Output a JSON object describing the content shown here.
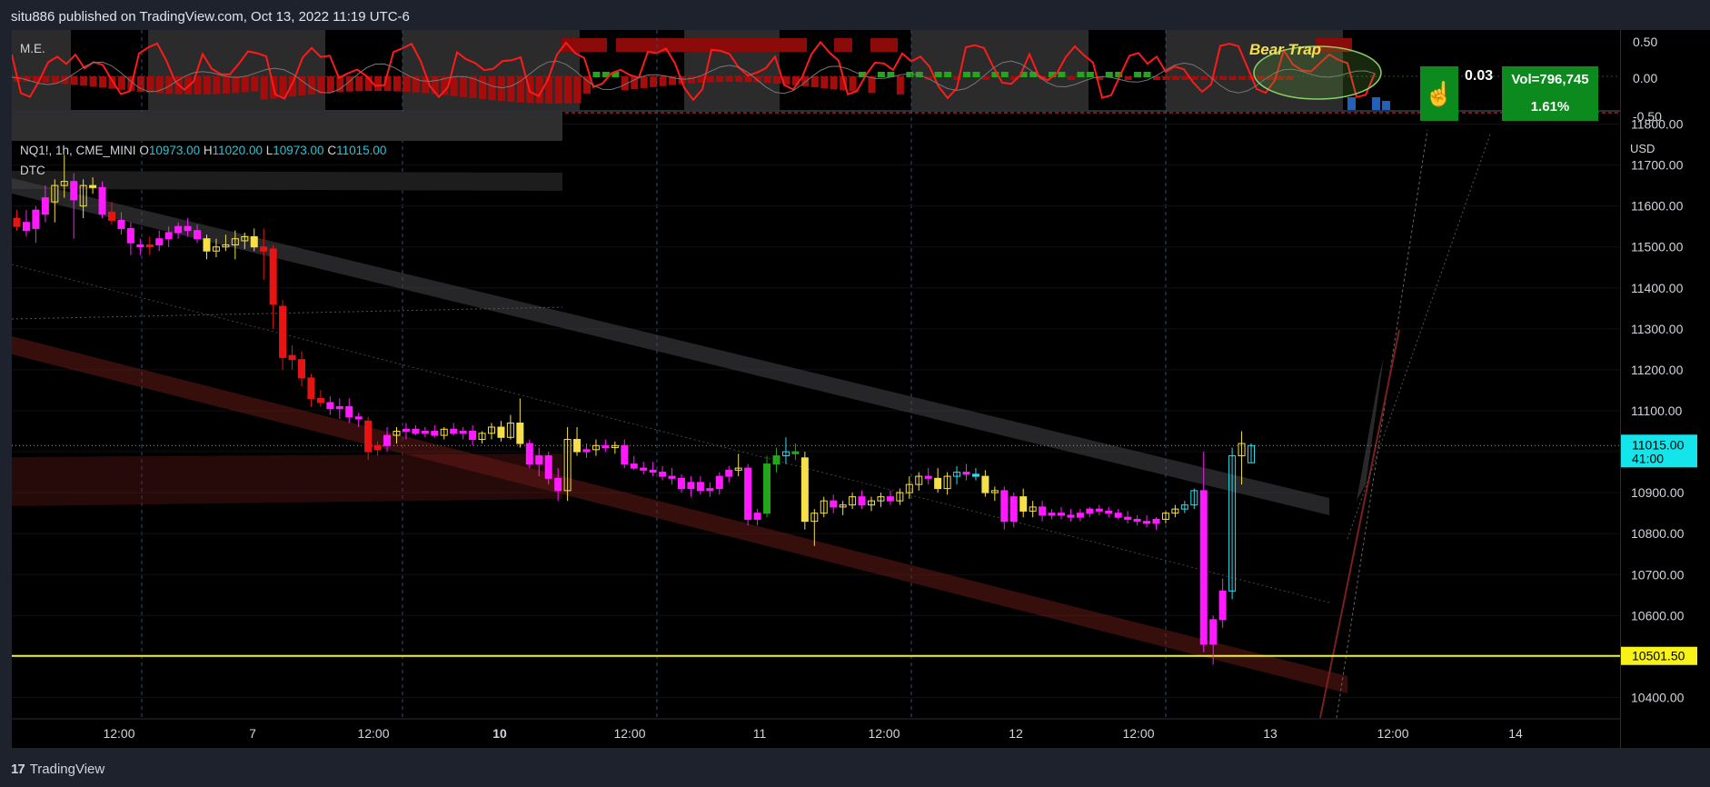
{
  "header": {
    "published": "situ886 published on TradingView.com, Oct 13, 2022 11:19 UTC-6"
  },
  "indicator": {
    "name": "M.E.",
    "annotation": "Bear Trap",
    "value": "0.03",
    "vol_label": "Vol=796,745",
    "vol_pct": "1.61%",
    "scale": [
      "0.50",
      "0.00",
      "-0.50"
    ]
  },
  "legend": {
    "symbol": "NQ1!, 1h, CME_MINI",
    "o_label": "O",
    "o_value": "10973.00",
    "h_label": "H",
    "h_value": "11020.00",
    "l_label": "L",
    "l_value": "10973.00",
    "c_label": "C",
    "c_value": "11015.00",
    "study": "DTC"
  },
  "price_scale": {
    "currency": "USD",
    "ticks": [
      "11800.00",
      "11700.00",
      "11600.00",
      "11500.00",
      "11400.00",
      "11300.00",
      "11200.00",
      "11100.00",
      "11000.00",
      "10900.00",
      "10800.00",
      "10700.00",
      "10600.00",
      "10500.00",
      "10400.00"
    ],
    "current_price": "11015.00",
    "countdown": "41:00",
    "level_price": "10501.50"
  },
  "time_scale": {
    "ticks": [
      {
        "label": "12:00",
        "bold": false
      },
      {
        "label": "7",
        "bold": false
      },
      {
        "label": "12:00",
        "bold": false
      },
      {
        "label": "10",
        "bold": true
      },
      {
        "label": "12:00",
        "bold": false
      },
      {
        "label": "11",
        "bold": false
      },
      {
        "label": "12:00",
        "bold": false
      },
      {
        "label": "12",
        "bold": false
      },
      {
        "label": "12:00",
        "bold": false
      },
      {
        "label": "13",
        "bold": false
      },
      {
        "label": "12:00",
        "bold": false
      },
      {
        "label": "14",
        "bold": false
      }
    ]
  },
  "footer": {
    "brand": "TradingView"
  },
  "colors": {
    "background": "#000000",
    "bull_yellow": "#f5e04b",
    "bear_red": "#e81414",
    "bear_magenta": "#ff1aff",
    "cyan": "#26e0f0",
    "level_yellow": "#f7f31a",
    "indicator_red": "#ff1a1a",
    "indicator_green": "#22a61a"
  },
  "chart_data": {
    "type": "candlestick",
    "symbol": "NQ1!",
    "interval": "1h",
    "ylim": [
      10350,
      11830
    ],
    "horizontal_level": 10501.5,
    "last_price": 11015,
    "candles": [
      {
        "o": 11570,
        "h": 11590,
        "l": 11540,
        "c": 11550,
        "color": "red"
      },
      {
        "o": 11540,
        "h": 11590,
        "l": 11525,
        "c": 11560,
        "color": "magenta"
      },
      {
        "o": 11545,
        "h": 11600,
        "l": 11510,
        "c": 11590,
        "color": "magenta"
      },
      {
        "o": 11580,
        "h": 11650,
        "l": 11560,
        "c": 11620,
        "color": "magenta"
      },
      {
        "o": 11610,
        "h": 11665,
        "l": 11560,
        "c": 11650,
        "color": "yellow"
      },
      {
        "o": 11650,
        "h": 11725,
        "l": 11620,
        "c": 11660,
        "color": "yellow"
      },
      {
        "o": 11660,
        "h": 11680,
        "l": 11520,
        "c": 11615,
        "color": "magenta"
      },
      {
        "o": 11600,
        "h": 11665,
        "l": 11570,
        "c": 11650,
        "color": "yellow"
      },
      {
        "o": 11650,
        "h": 11670,
        "l": 11630,
        "c": 11645,
        "color": "yellow"
      },
      {
        "o": 11645,
        "h": 11660,
        "l": 11570,
        "c": 11580,
        "color": "magenta"
      },
      {
        "o": 11585,
        "h": 11610,
        "l": 11555,
        "c": 11565,
        "color": "red"
      },
      {
        "o": 11565,
        "h": 11585,
        "l": 11530,
        "c": 11545,
        "color": "magenta"
      },
      {
        "o": 11545,
        "h": 11560,
        "l": 11480,
        "c": 11510,
        "color": "magenta"
      },
      {
        "o": 11505,
        "h": 11520,
        "l": 11480,
        "c": 11500,
        "color": "magenta"
      },
      {
        "o": 11500,
        "h": 11525,
        "l": 11480,
        "c": 11505,
        "color": "red"
      },
      {
        "o": 11505,
        "h": 11540,
        "l": 11490,
        "c": 11520,
        "color": "magenta"
      },
      {
        "o": 11520,
        "h": 11550,
        "l": 11500,
        "c": 11535,
        "color": "magenta"
      },
      {
        "o": 11535,
        "h": 11560,
        "l": 11520,
        "c": 11550,
        "color": "magenta"
      },
      {
        "o": 11550,
        "h": 11570,
        "l": 11525,
        "c": 11540,
        "color": "magenta"
      },
      {
        "o": 11540,
        "h": 11555,
        "l": 11510,
        "c": 11520,
        "color": "magenta"
      },
      {
        "o": 11520,
        "h": 11530,
        "l": 11470,
        "c": 11490,
        "color": "yellow"
      },
      {
        "o": 11490,
        "h": 11520,
        "l": 11475,
        "c": 11500,
        "color": "yellow"
      },
      {
        "o": 11500,
        "h": 11530,
        "l": 11490,
        "c": 11505,
        "color": "yellow"
      },
      {
        "o": 11505,
        "h": 11540,
        "l": 11470,
        "c": 11520,
        "color": "yellow"
      },
      {
        "o": 11515,
        "h": 11535,
        "l": 11495,
        "c": 11525,
        "color": "yellow"
      },
      {
        "o": 11525,
        "h": 11545,
        "l": 11490,
        "c": 11500,
        "color": "yellow"
      },
      {
        "o": 11500,
        "h": 11545,
        "l": 11420,
        "c": 11490,
        "color": "red"
      },
      {
        "o": 11495,
        "h": 11505,
        "l": 11300,
        "c": 11360,
        "color": "red"
      },
      {
        "o": 11355,
        "h": 11370,
        "l": 11200,
        "c": 11230,
        "color": "red"
      },
      {
        "o": 11235,
        "h": 11260,
        "l": 11200,
        "c": 11225,
        "color": "red"
      },
      {
        "o": 11225,
        "h": 11245,
        "l": 11160,
        "c": 11180,
        "color": "red"
      },
      {
        "o": 11180,
        "h": 11190,
        "l": 11110,
        "c": 11130,
        "color": "red"
      },
      {
        "o": 11130,
        "h": 11150,
        "l": 11110,
        "c": 11120,
        "color": "red"
      },
      {
        "o": 11120,
        "h": 11135,
        "l": 11090,
        "c": 11105,
        "color": "magenta"
      },
      {
        "o": 11105,
        "h": 11130,
        "l": 11080,
        "c": 11110,
        "color": "magenta"
      },
      {
        "o": 11110,
        "h": 11130,
        "l": 11070,
        "c": 11085,
        "color": "magenta"
      },
      {
        "o": 11085,
        "h": 11095,
        "l": 11060,
        "c": 11080,
        "color": "magenta"
      },
      {
        "o": 11075,
        "h": 11085,
        "l": 10980,
        "c": 11000,
        "color": "red"
      },
      {
        "o": 11005,
        "h": 11025,
        "l": 10990,
        "c": 11015,
        "color": "red"
      },
      {
        "o": 11015,
        "h": 11060,
        "l": 11000,
        "c": 11040,
        "color": "magenta"
      },
      {
        "o": 11040,
        "h": 11060,
        "l": 11020,
        "c": 11050,
        "color": "yellow"
      },
      {
        "o": 11050,
        "h": 11070,
        "l": 11030,
        "c": 11055,
        "color": "magenta"
      },
      {
        "o": 11055,
        "h": 11065,
        "l": 11040,
        "c": 11045,
        "color": "magenta"
      },
      {
        "o": 11045,
        "h": 11060,
        "l": 11035,
        "c": 11050,
        "color": "magenta"
      },
      {
        "o": 11050,
        "h": 11065,
        "l": 11035,
        "c": 11040,
        "color": "magenta"
      },
      {
        "o": 11040,
        "h": 11060,
        "l": 11030,
        "c": 11055,
        "color": "yellow"
      },
      {
        "o": 11055,
        "h": 11070,
        "l": 11040,
        "c": 11045,
        "color": "magenta"
      },
      {
        "o": 11045,
        "h": 11060,
        "l": 11030,
        "c": 11050,
        "color": "magenta"
      },
      {
        "o": 11050,
        "h": 11065,
        "l": 11015,
        "c": 11030,
        "color": "magenta"
      },
      {
        "o": 11030,
        "h": 11050,
        "l": 11020,
        "c": 11045,
        "color": "yellow"
      },
      {
        "o": 11045,
        "h": 11070,
        "l": 11030,
        "c": 11060,
        "color": "yellow"
      },
      {
        "o": 11060,
        "h": 11075,
        "l": 11025,
        "c": 11035,
        "color": "yellow"
      },
      {
        "o": 11035,
        "h": 11090,
        "l": 11030,
        "c": 11070,
        "color": "yellow"
      },
      {
        "o": 11070,
        "h": 11130,
        "l": 11010,
        "c": 11020,
        "color": "yellow"
      },
      {
        "o": 11020,
        "h": 11030,
        "l": 10960,
        "c": 10970,
        "color": "magenta"
      },
      {
        "o": 10970,
        "h": 11010,
        "l": 10940,
        "c": 10990,
        "color": "magenta"
      },
      {
        "o": 10990,
        "h": 11000,
        "l": 10920,
        "c": 10935,
        "color": "magenta"
      },
      {
        "o": 10935,
        "h": 10960,
        "l": 10880,
        "c": 10905,
        "color": "magenta"
      },
      {
        "o": 10905,
        "h": 11060,
        "l": 10880,
        "c": 11030,
        "color": "yellow"
      },
      {
        "o": 11030,
        "h": 11060,
        "l": 10990,
        "c": 11000,
        "color": "yellow"
      },
      {
        "o": 11000,
        "h": 11020,
        "l": 10985,
        "c": 11005,
        "color": "magenta"
      },
      {
        "o": 11005,
        "h": 11030,
        "l": 10990,
        "c": 11015,
        "color": "yellow"
      },
      {
        "o": 11015,
        "h": 11030,
        "l": 11000,
        "c": 11010,
        "color": "magenta"
      },
      {
        "o": 11010,
        "h": 11025,
        "l": 10995,
        "c": 11015,
        "color": "yellow"
      },
      {
        "o": 11015,
        "h": 11030,
        "l": 10960,
        "c": 10970,
        "color": "magenta"
      },
      {
        "o": 10970,
        "h": 10990,
        "l": 10955,
        "c": 10960,
        "color": "magenta"
      },
      {
        "o": 10960,
        "h": 10975,
        "l": 10945,
        "c": 10955,
        "color": "magenta"
      },
      {
        "o": 10955,
        "h": 10975,
        "l": 10940,
        "c": 10950,
        "color": "magenta"
      },
      {
        "o": 10950,
        "h": 10965,
        "l": 10930,
        "c": 10940,
        "color": "magenta"
      },
      {
        "o": 10940,
        "h": 10960,
        "l": 10920,
        "c": 10935,
        "color": "magenta"
      },
      {
        "o": 10935,
        "h": 10945,
        "l": 10900,
        "c": 10910,
        "color": "magenta"
      },
      {
        "o": 10910,
        "h": 10940,
        "l": 10890,
        "c": 10925,
        "color": "magenta"
      },
      {
        "o": 10925,
        "h": 10940,
        "l": 10895,
        "c": 10905,
        "color": "magenta"
      },
      {
        "o": 10905,
        "h": 10925,
        "l": 10890,
        "c": 10910,
        "color": "magenta"
      },
      {
        "o": 10910,
        "h": 10950,
        "l": 10895,
        "c": 10940,
        "color": "magenta"
      },
      {
        "o": 10940,
        "h": 10965,
        "l": 10925,
        "c": 10955,
        "color": "magenta"
      },
      {
        "o": 10955,
        "h": 10995,
        "l": 10940,
        "c": 10960,
        "color": "yellow"
      },
      {
        "o": 10960,
        "h": 10970,
        "l": 10820,
        "c": 10835,
        "color": "magenta"
      },
      {
        "o": 10835,
        "h": 10860,
        "l": 10820,
        "c": 10850,
        "color": "magenta"
      },
      {
        "o": 10850,
        "h": 10990,
        "l": 10840,
        "c": 10970,
        "color": "green"
      },
      {
        "o": 10970,
        "h": 11010,
        "l": 10950,
        "c": 10990,
        "color": "green"
      },
      {
        "o": 10990,
        "h": 11035,
        "l": 10970,
        "c": 11000,
        "color": "cyan"
      },
      {
        "o": 11000,
        "h": 11020,
        "l": 10980,
        "c": 10995,
        "color": "green"
      },
      {
        "o": 10985,
        "h": 11000,
        "l": 10810,
        "c": 10830,
        "color": "yellow"
      },
      {
        "o": 10830,
        "h": 10860,
        "l": 10770,
        "c": 10850,
        "color": "yellow"
      },
      {
        "o": 10850,
        "h": 10890,
        "l": 10840,
        "c": 10880,
        "color": "yellow"
      },
      {
        "o": 10880,
        "h": 10895,
        "l": 10850,
        "c": 10865,
        "color": "magenta"
      },
      {
        "o": 10865,
        "h": 10880,
        "l": 10845,
        "c": 10870,
        "color": "yellow"
      },
      {
        "o": 10870,
        "h": 10900,
        "l": 10860,
        "c": 10890,
        "color": "yellow"
      },
      {
        "o": 10890,
        "h": 10905,
        "l": 10860,
        "c": 10870,
        "color": "magenta"
      },
      {
        "o": 10870,
        "h": 10890,
        "l": 10855,
        "c": 10880,
        "color": "yellow"
      },
      {
        "o": 10880,
        "h": 10900,
        "l": 10865,
        "c": 10890,
        "color": "yellow"
      },
      {
        "o": 10890,
        "h": 10905,
        "l": 10870,
        "c": 10880,
        "color": "magenta"
      },
      {
        "o": 10880,
        "h": 10910,
        "l": 10870,
        "c": 10900,
        "color": "yellow"
      },
      {
        "o": 10900,
        "h": 10940,
        "l": 10885,
        "c": 10920,
        "color": "yellow"
      },
      {
        "o": 10920,
        "h": 10950,
        "l": 10905,
        "c": 10940,
        "color": "yellow"
      },
      {
        "o": 10940,
        "h": 10960,
        "l": 10920,
        "c": 10935,
        "color": "magenta"
      },
      {
        "o": 10935,
        "h": 10960,
        "l": 10900,
        "c": 10910,
        "color": "yellow"
      },
      {
        "o": 10910,
        "h": 10950,
        "l": 10895,
        "c": 10940,
        "color": "yellow"
      },
      {
        "o": 10940,
        "h": 10965,
        "l": 10920,
        "c": 10950,
        "color": "cyan"
      },
      {
        "o": 10950,
        "h": 10970,
        "l": 10930,
        "c": 10945,
        "color": "magenta"
      },
      {
        "o": 10945,
        "h": 10960,
        "l": 10930,
        "c": 10940,
        "color": "cyan"
      },
      {
        "o": 10940,
        "h": 10955,
        "l": 10890,
        "c": 10900,
        "color": "yellow"
      },
      {
        "o": 10900,
        "h": 10915,
        "l": 10880,
        "c": 10905,
        "color": "yellow"
      },
      {
        "o": 10905,
        "h": 10915,
        "l": 10810,
        "c": 10830,
        "color": "magenta"
      },
      {
        "o": 10830,
        "h": 10900,
        "l": 10815,
        "c": 10890,
        "color": "magenta"
      },
      {
        "o": 10890,
        "h": 10910,
        "l": 10840,
        "c": 10855,
        "color": "yellow"
      },
      {
        "o": 10855,
        "h": 10880,
        "l": 10840,
        "c": 10865,
        "color": "yellow"
      },
      {
        "o": 10865,
        "h": 10880,
        "l": 10830,
        "c": 10845,
        "color": "magenta"
      },
      {
        "o": 10845,
        "h": 10860,
        "l": 10835,
        "c": 10850,
        "color": "magenta"
      },
      {
        "o": 10850,
        "h": 10865,
        "l": 10835,
        "c": 10845,
        "color": "magenta"
      },
      {
        "o": 10845,
        "h": 10860,
        "l": 10830,
        "c": 10840,
        "color": "magenta"
      },
      {
        "o": 10840,
        "h": 10860,
        "l": 10830,
        "c": 10850,
        "color": "magenta"
      },
      {
        "o": 10850,
        "h": 10865,
        "l": 10840,
        "c": 10860,
        "color": "magenta"
      },
      {
        "o": 10860,
        "h": 10870,
        "l": 10845,
        "c": 10855,
        "color": "magenta"
      },
      {
        "o": 10855,
        "h": 10865,
        "l": 10840,
        "c": 10850,
        "color": "magenta"
      },
      {
        "o": 10850,
        "h": 10860,
        "l": 10835,
        "c": 10840,
        "color": "magenta"
      },
      {
        "o": 10840,
        "h": 10855,
        "l": 10825,
        "c": 10835,
        "color": "magenta"
      },
      {
        "o": 10835,
        "h": 10845,
        "l": 10820,
        "c": 10830,
        "color": "magenta"
      },
      {
        "o": 10830,
        "h": 10845,
        "l": 10815,
        "c": 10825,
        "color": "magenta"
      },
      {
        "o": 10825,
        "h": 10840,
        "l": 10810,
        "c": 10835,
        "color": "magenta"
      },
      {
        "o": 10835,
        "h": 10855,
        "l": 10825,
        "c": 10850,
        "color": "yellow"
      },
      {
        "o": 10850,
        "h": 10870,
        "l": 10840,
        "c": 10860,
        "color": "yellow"
      },
      {
        "o": 10860,
        "h": 10880,
        "l": 10850,
        "c": 10870,
        "color": "cyan"
      },
      {
        "o": 10870,
        "h": 10910,
        "l": 10860,
        "c": 10905,
        "color": "cyan"
      },
      {
        "o": 10905,
        "h": 11000,
        "l": 10510,
        "c": 10530,
        "color": "magenta"
      },
      {
        "o": 10530,
        "h": 10600,
        "l": 10480,
        "c": 10590,
        "color": "magenta"
      },
      {
        "o": 10590,
        "h": 10690,
        "l": 10570,
        "c": 10660,
        "color": "magenta"
      },
      {
        "o": 10660,
        "h": 11010,
        "l": 10640,
        "c": 10990,
        "color": "cyan"
      },
      {
        "o": 10990,
        "h": 11050,
        "l": 10920,
        "c": 11020,
        "color": "yellow"
      },
      {
        "o": 10973,
        "h": 11020,
        "l": 10973,
        "c": 11015,
        "color": "cyan"
      }
    ]
  }
}
